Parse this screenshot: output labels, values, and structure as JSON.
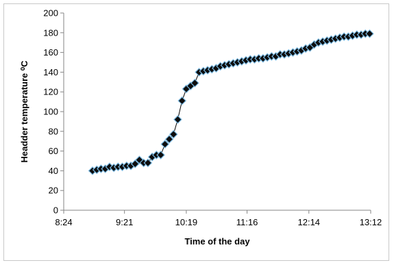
{
  "chart_data": {
    "type": "scatter",
    "title": "",
    "xlabel": "Time of the day",
    "ylabel": "Headder temperature ⁰C",
    "x_tick_labels": [
      "8:24",
      "9:21",
      "10:19",
      "11:16",
      "12:14",
      "13:12"
    ],
    "x_tick_values_min": [
      504,
      561,
      619,
      676,
      734,
      792
    ],
    "xlim_min": [
      504,
      792
    ],
    "y_tick_labels": [
      "0",
      "20",
      "40",
      "60",
      "80",
      "100",
      "120",
      "140",
      "160",
      "180",
      "200"
    ],
    "ylim": [
      0,
      200
    ],
    "grid": false,
    "legend": "none",
    "marker": "diamond",
    "marker_color": "#0d0d0d",
    "marker_edge_color": "#7ab8e0",
    "trendline": true,
    "trendline_color": "#000000",
    "series": [
      {
        "x_min": [
          531,
          535,
          539,
          543,
          547,
          551,
          555,
          559,
          563,
          567,
          571,
          575,
          579,
          583,
          587,
          591,
          595,
          599,
          603,
          607,
          611,
          615,
          619,
          623,
          627,
          631,
          635,
          639,
          643,
          647,
          651,
          655,
          659,
          663,
          667,
          671,
          675,
          679,
          683,
          687,
          691,
          695,
          699,
          703,
          707,
          711,
          715,
          719,
          723,
          727,
          731,
          735,
          739,
          743,
          747,
          751,
          755,
          759,
          763,
          767,
          771,
          775,
          779,
          783,
          787,
          791
        ],
        "y": [
          40,
          41,
          42,
          42,
          44,
          43,
          44,
          44,
          45,
          45,
          47,
          51,
          48,
          48,
          54,
          56,
          56,
          67,
          72,
          77,
          92,
          111,
          123,
          126,
          129,
          140,
          141,
          142,
          143,
          144,
          146,
          147,
          148,
          149,
          150,
          151,
          152,
          153,
          153,
          154,
          154,
          155,
          156,
          156,
          158,
          158,
          159,
          160,
          161,
          162,
          164,
          165,
          168,
          170,
          171,
          172,
          173,
          174,
          175,
          176,
          176,
          177,
          178,
          178,
          179,
          179
        ]
      }
    ]
  }
}
